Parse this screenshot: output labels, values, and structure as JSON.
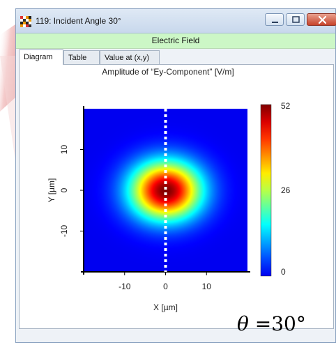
{
  "window": {
    "title": "119: Incident Angle 30°",
    "field_bar": "Electric Field",
    "tabs": [
      {
        "label": "Diagram",
        "active": true
      },
      {
        "label": "Table",
        "active": false
      },
      {
        "label": "Value at (x,y)",
        "active": false
      }
    ],
    "buttons": {
      "minimize": "minimize-icon",
      "maximize": "maximize-icon",
      "close": "close-icon"
    }
  },
  "colors": {
    "accent_bar": "#ccf7c6",
    "title_bar": "#d4e1f1",
    "close": "#c7432b"
  },
  "chart_data": {
    "type": "heatmap",
    "title": "Amplitude of “Ey-Component”  [V/m]",
    "xlabel": "X [µm]",
    "ylabel": "Y [µm]",
    "xlim": [
      -20,
      20
    ],
    "ylim": [
      -20,
      20
    ],
    "x_ticks": [
      -10,
      0,
      10
    ],
    "y_ticks": [
      -10,
      0,
      10
    ],
    "colorbar": {
      "min": 0,
      "max": 52,
      "ticks": [
        0,
        26,
        52
      ],
      "colormap": "jet"
    },
    "field": {
      "center": [
        0,
        0
      ],
      "peak": 52,
      "sigma_x": 6.0,
      "sigma_y": 5.0
    },
    "dashed_line": {
      "x": 0
    }
  },
  "annotation": {
    "symbol": "θ",
    "text": "=30°"
  }
}
